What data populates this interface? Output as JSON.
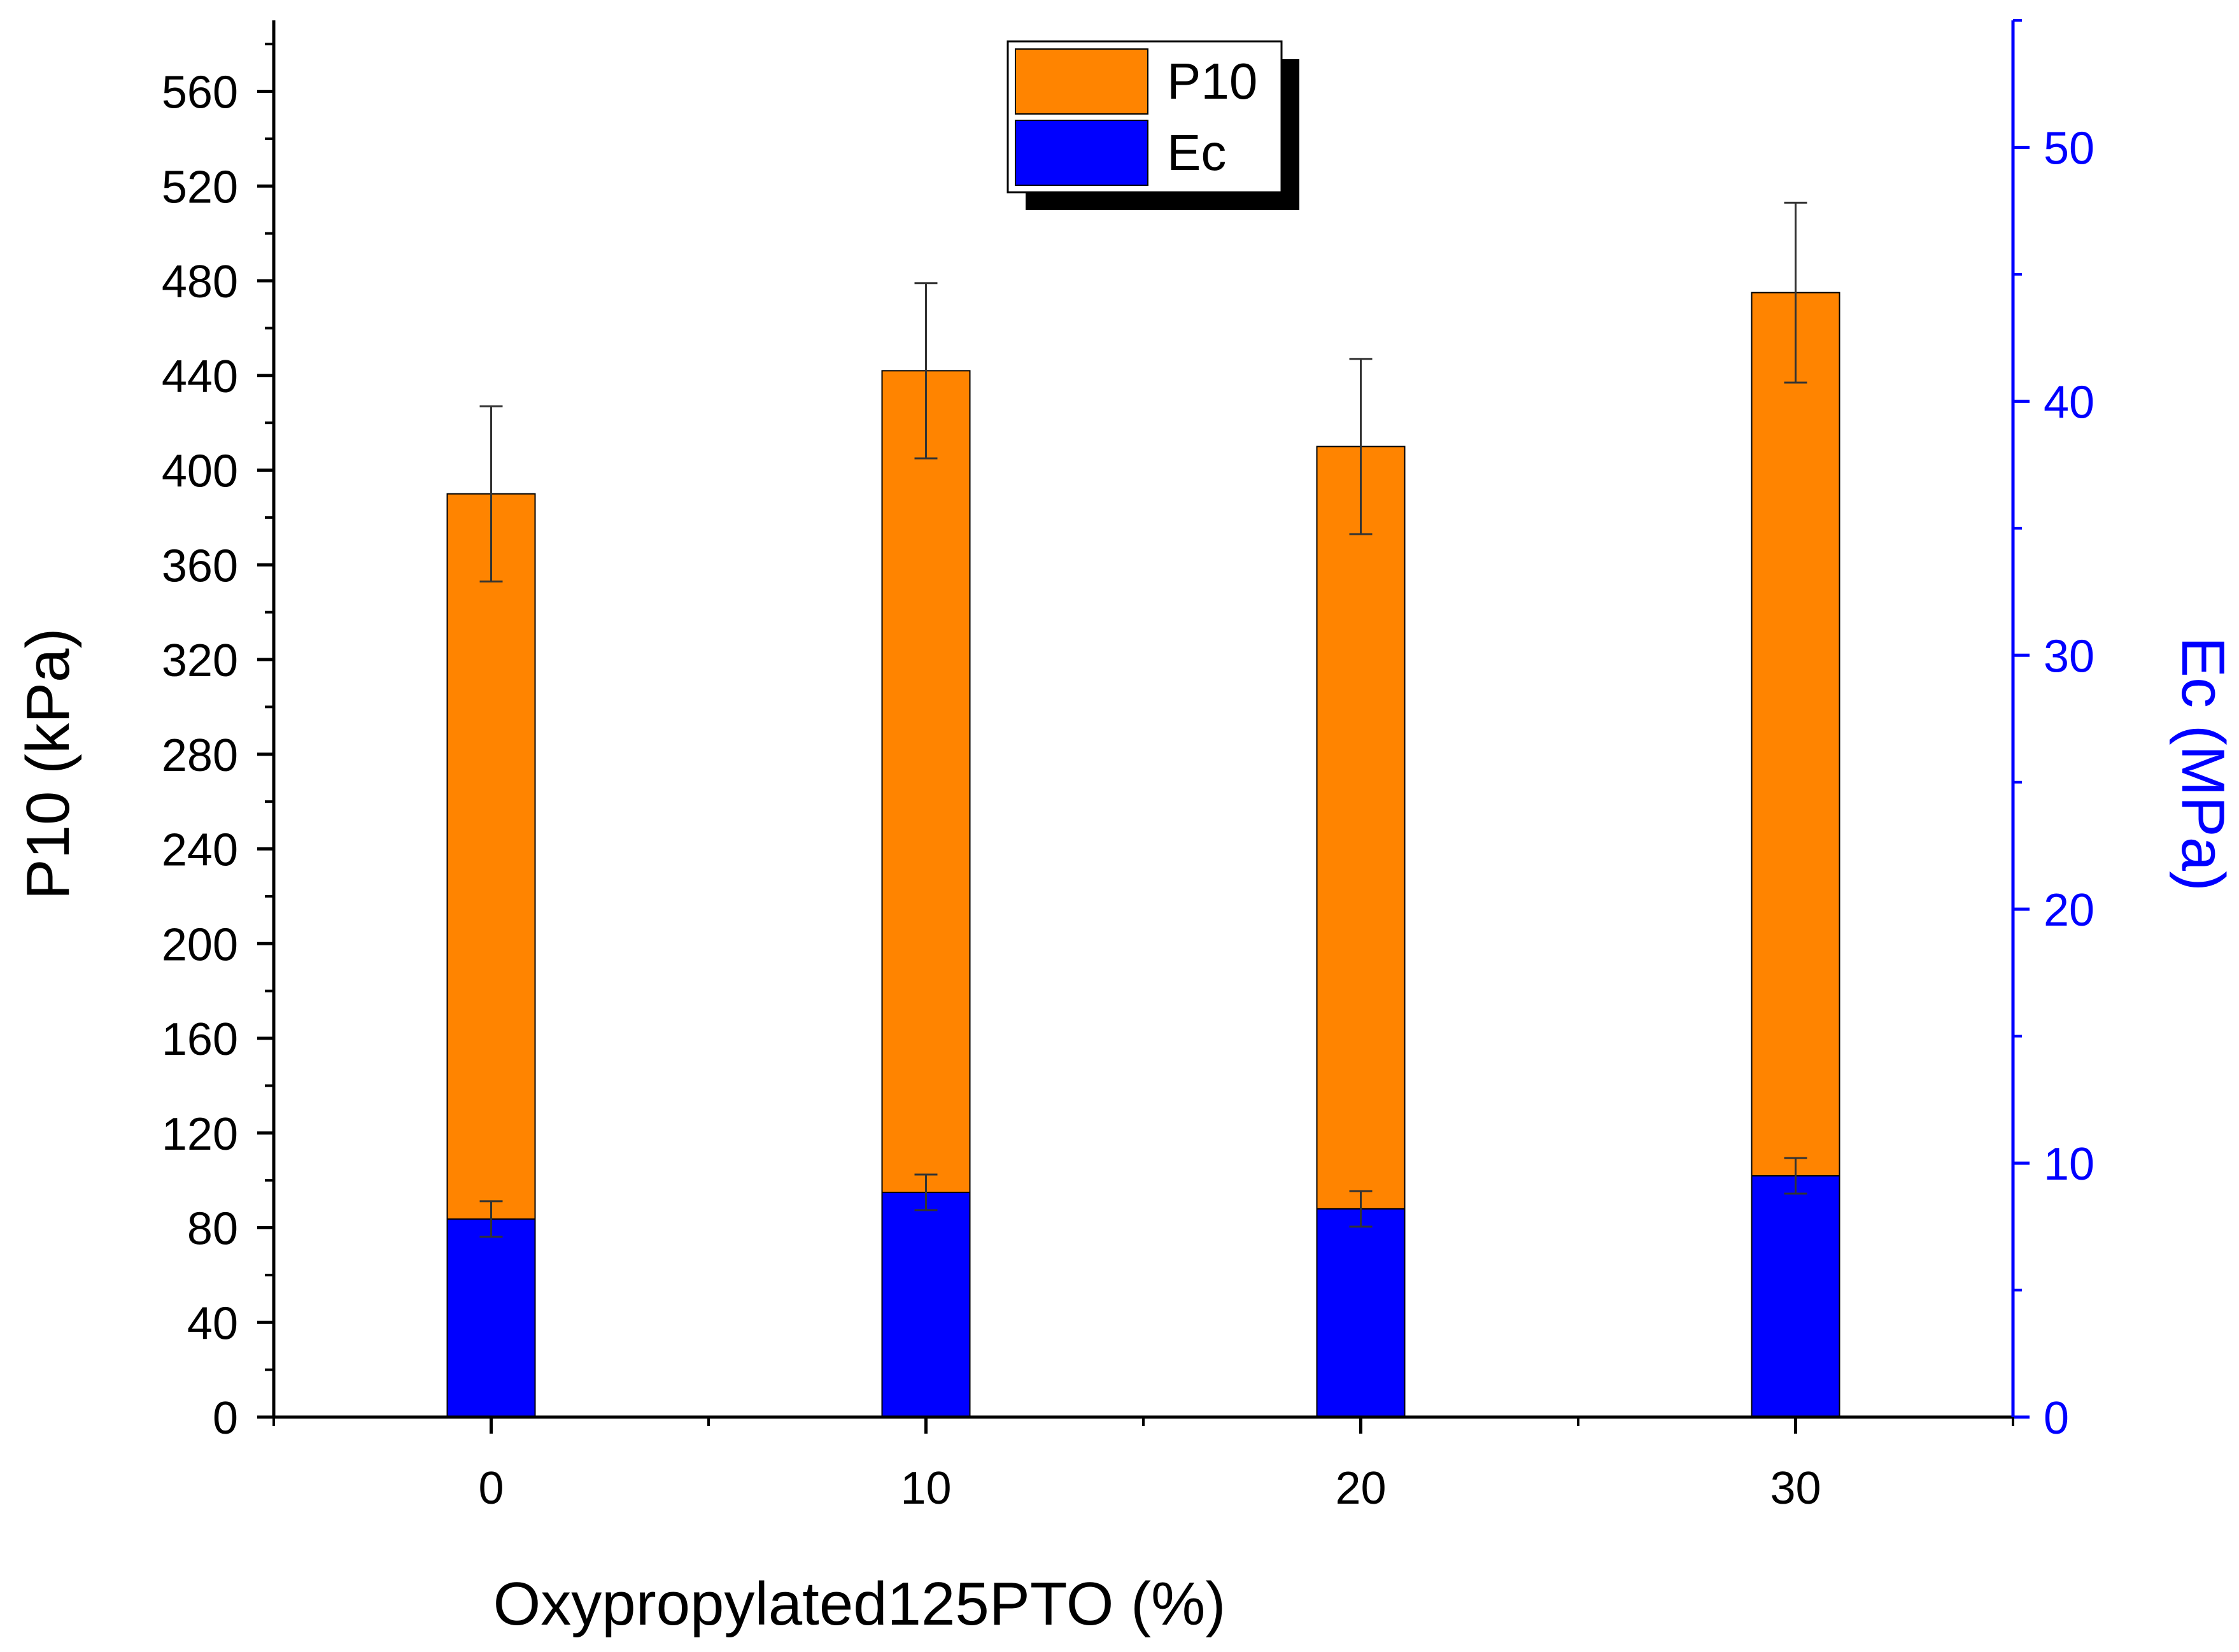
{
  "chart_data": {
    "type": "bar",
    "title": "",
    "xlabel": "Oxypropylated125PTO (%)",
    "ylabel_left": "P10 (kPa)",
    "ylabel_right": "Ec (MPa)",
    "categories": [
      "0",
      "10",
      "20",
      "30"
    ],
    "ylim_left": [
      0,
      590
    ],
    "ylim_right": [
      0,
      55
    ],
    "left_ticks": [
      "0",
      "40",
      "80",
      "120",
      "160",
      "200",
      "240",
      "280",
      "320",
      "360",
      "400",
      "440",
      "480",
      "520",
      "560"
    ],
    "right_ticks": [
      "0",
      "10",
      "20",
      "30",
      "40",
      "50"
    ],
    "series": [
      {
        "name": "P10",
        "axis": "left",
        "color": "#ff8400",
        "values": [
          390,
          442,
          410,
          475
        ],
        "errors": [
          37,
          37,
          37,
          38
        ]
      },
      {
        "name": "Ec",
        "axis": "right",
        "color": "#0000ff",
        "values": [
          7.8,
          8.85,
          8.2,
          9.5
        ],
        "errors": [
          0.7,
          0.7,
          0.7,
          0.7
        ]
      }
    ],
    "legend": {
      "placement": "top-center",
      "entries": [
        "P10",
        "Ec"
      ]
    },
    "grid": false
  },
  "colors": {
    "left_axis": "#000000",
    "right_axis": "#0000ff",
    "p10_bar": "#ff8400",
    "ec_bar": "#0000ff"
  }
}
